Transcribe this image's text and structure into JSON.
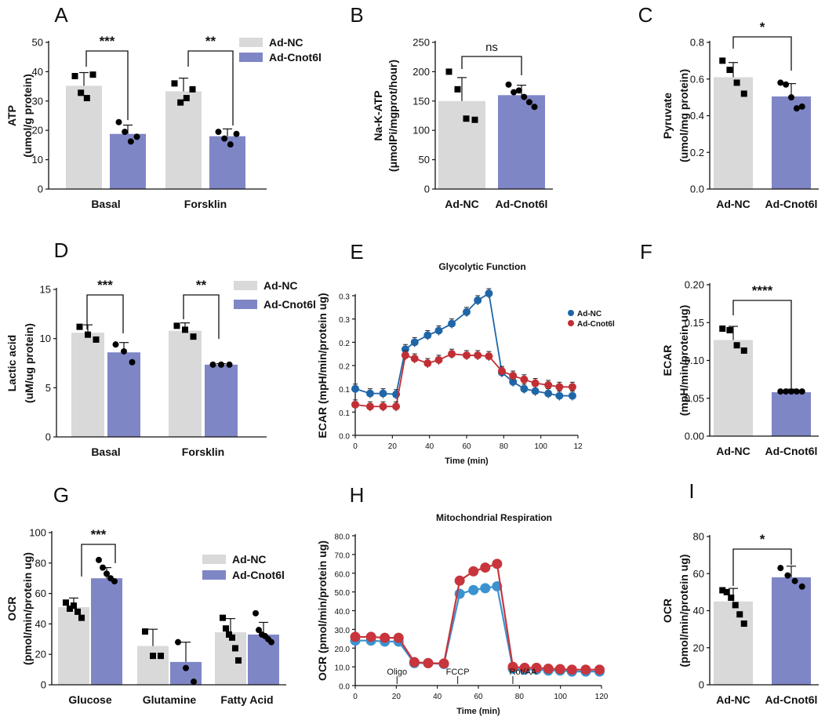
{
  "colors": {
    "nc": "#d9d9d9",
    "cnot": "#7f86c6",
    "ecar_nc": "#1f66a8",
    "ecar_cnot": "#c12f35",
    "ocr_nc": "#3a93d1",
    "ocr_cnot": "#c8353c"
  },
  "chart_data": [
    {
      "id": "A",
      "type": "bar",
      "panel_label": "A",
      "ylabel": "ATP",
      "ylabel2": "(umol/g protein)",
      "ylim": [
        0,
        50
      ],
      "yticks": [
        0,
        10,
        20,
        30,
        40,
        50
      ],
      "categories": [
        "Basal",
        "Forsklin"
      ],
      "series": [
        {
          "name": "Ad-NC",
          "values": [
            35.2,
            33.3
          ],
          "errors": [
            4.5,
            4.5
          ],
          "points": [
            [
              38.5,
              32.8,
              31,
              39
            ],
            [
              36,
              29.5,
              31,
              34
            ]
          ]
        },
        {
          "name": "Ad-Cnot6l",
          "values": [
            18.8,
            18
          ],
          "errors": [
            3,
            2.5
          ],
          "points": [
            [
              22.8,
              19.5,
              16.2,
              17.8
            ],
            [
              19.5,
              17.2,
              15.2,
              18.8
            ]
          ]
        }
      ],
      "legend": [
        "Ad-NC",
        "Ad-Cnot6l"
      ],
      "sig": [
        "***",
        "**"
      ]
    },
    {
      "id": "B",
      "type": "bar",
      "panel_label": "B",
      "ylabel": "Na-K-ATP",
      "ylabel2": "(μmolPi/mgprot/hour)",
      "ylim": [
        0,
        250
      ],
      "yticks": [
        0,
        50,
        100,
        150,
        200,
        250
      ],
      "categories": [
        "Ad-NC",
        "Ad-Cnot6l"
      ],
      "values": [
        150,
        160
      ],
      "errors": [
        40,
        17
      ],
      "points": [
        [
          200,
          170,
          120,
          118
        ],
        [
          178,
          165,
          168,
          157,
          148,
          140
        ]
      ],
      "sig": [
        "ns"
      ]
    },
    {
      "id": "C",
      "type": "bar",
      "panel_label": "C",
      "ylabel": "Pyruvate",
      "ylabel2": "(umol/mg protein)",
      "ylim": [
        0,
        0.8
      ],
      "yticks": [
        "0.0",
        "0.2",
        "0.4",
        "0.6",
        "0.8"
      ],
      "categories": [
        "Ad-NC",
        "Ad-Cnot6l"
      ],
      "values": [
        0.61,
        0.505
      ],
      "errors": [
        0.08,
        0.07
      ],
      "points": [
        [
          0.7,
          0.65,
          0.58,
          0.52
        ],
        [
          0.58,
          0.57,
          0.5,
          0.44,
          0.45
        ]
      ],
      "sig": [
        "*"
      ]
    },
    {
      "id": "D",
      "type": "bar",
      "panel_label": "D",
      "ylabel": "Lactic acid",
      "ylabel2": "(uM/ug protein)",
      "ylim": [
        0,
        15
      ],
      "yticks": [
        0,
        5,
        10,
        15
      ],
      "categories": [
        "Basal",
        "Forsklin"
      ],
      "series": [
        {
          "name": "Ad-NC",
          "values": [
            10.6,
            10.8
          ],
          "errors": [
            0.8,
            0.8
          ],
          "points": [
            [
              11.2,
              10.4,
              9.9
            ],
            [
              11.3,
              10.9,
              10.2
            ]
          ]
        },
        {
          "name": "Ad-Cnot6l",
          "values": [
            8.6,
            7.35
          ],
          "errors": [
            1,
            0.1
          ],
          "points": [
            [
              9.4,
              8.7,
              7.6
            ],
            [
              7.35,
              7.35,
              7.35
            ]
          ]
        }
      ],
      "legend": [
        "Ad-NC",
        "Ad-Cnot6l"
      ],
      "sig": [
        "***",
        "**"
      ]
    },
    {
      "id": "E",
      "type": "line",
      "panel_label": "E",
      "title": "Glycolytic Function",
      "ylabel": "ECAR (mpH/min/protein ug)",
      "xlabel": "Time (min)",
      "xlim": [
        0,
        120
      ],
      "ylim": [
        0,
        0.3
      ],
      "xticks": [
        "0",
        "20",
        "40",
        "60",
        "80",
        "100",
        "12"
      ],
      "yticks": [
        "0.0",
        "0.1",
        "0.1",
        "0.2",
        "0.2",
        "0.3",
        "0.3"
      ],
      "x": [
        0,
        8,
        15,
        22,
        27,
        32,
        39,
        45,
        52,
        60,
        66,
        72,
        79,
        85,
        91,
        97,
        104,
        110,
        117
      ],
      "series": [
        {
          "name": "Ad-NC",
          "values": [
            0.1,
            0.09,
            0.09,
            0.088,
            0.185,
            0.2,
            0.215,
            0.225,
            0.24,
            0.265,
            0.29,
            0.305,
            0.135,
            0.115,
            0.1,
            0.095,
            0.09,
            0.085,
            0.085
          ]
        },
        {
          "name": "Ad-Cnot6l",
          "values": [
            0.066,
            0.062,
            0.062,
            0.062,
            0.172,
            0.165,
            0.155,
            0.162,
            0.175,
            0.172,
            0.172,
            0.17,
            0.138,
            0.128,
            0.12,
            0.112,
            0.108,
            0.104,
            0.104
          ]
        }
      ],
      "legend": [
        "Ad-NC",
        "Ad-Cnot6l"
      ]
    },
    {
      "id": "F",
      "type": "bar",
      "panel_label": "F",
      "ylabel": "ECAR",
      "ylabel2": "(mpH/min/protein ug)",
      "ylim": [
        0,
        0.2
      ],
      "yticks": [
        "0.00",
        "0.05",
        "0.10",
        "0.15",
        "0.20"
      ],
      "categories": [
        "Ad-NC",
        "Ad-Cnot6l"
      ],
      "values": [
        0.127,
        0.058
      ],
      "errors": [
        0.018,
        0.004
      ],
      "points": [
        [
          0.142,
          0.14,
          0.12,
          0.113
        ],
        [
          0.059,
          0.059,
          0.059,
          0.059,
          0.059
        ]
      ],
      "sig": [
        "****"
      ]
    },
    {
      "id": "G",
      "type": "bar",
      "panel_label": "G",
      "ylabel": "OCR",
      "ylabel2": "(pmol/min/protein ug)",
      "ylim": [
        0,
        100
      ],
      "yticks": [
        0,
        20,
        40,
        60,
        80,
        100
      ],
      "categories": [
        "Glucose",
        "Glutamine",
        "Fatty Acid"
      ],
      "series": [
        {
          "name": "Ad-NC",
          "values": [
            51,
            25.5,
            34.5
          ],
          "errors": [
            6,
            11,
            9
          ],
          "points": [
            [
              54,
              50,
              52,
              48,
              44
            ],
            [
              35,
              19,
              19
            ],
            [
              44,
              37,
              33,
              31,
              24,
              16
            ]
          ]
        },
        {
          "name": "Ad-Cnot6l",
          "values": [
            70,
            15,
            33
          ],
          "errors": [
            7,
            13,
            8
          ],
          "points": [
            [
              82,
              77,
              73,
              70,
              68
            ],
            [
              28,
              11,
              2
            ],
            [
              47,
              36,
              33,
              32,
              30,
              28
            ]
          ]
        }
      ],
      "legend": [
        "Ad-NC",
        "Ad-Cnot6l"
      ],
      "sig": [
        "***"
      ]
    },
    {
      "id": "H",
      "type": "line",
      "panel_label": "H",
      "title": "Mitochondrial Respiration",
      "ylabel": "OCR (pmol/min/protein ug)",
      "xlabel": "Time (min)",
      "xlim": [
        0,
        125
      ],
      "ylim": [
        0,
        80
      ],
      "xticks": [
        "0",
        "20",
        "40",
        "60",
        "80",
        "100",
        "120"
      ],
      "yticks": [
        "0.0",
        "10.0",
        "20.0",
        "30.0",
        "40.0",
        "50.0",
        "60.0",
        "70.0",
        "80.0"
      ],
      "x": [
        0,
        8,
        15,
        22,
        30,
        37,
        45,
        53,
        60,
        66,
        72,
        80,
        86,
        92,
        98,
        104,
        110,
        117,
        124
      ],
      "series": [
        {
          "name": "Ad-NC",
          "values": [
            24,
            24,
            23.5,
            23.5,
            12,
            12,
            11.5,
            49,
            51,
            52,
            53,
            9,
            8.5,
            8.5,
            8,
            8,
            7.5,
            7.5,
            7.5
          ]
        },
        {
          "name": "Ad-Cnot6l",
          "values": [
            26,
            26,
            25.5,
            25.5,
            12.5,
            12,
            11.8,
            56,
            61,
            63,
            65,
            10,
            9.5,
            9.5,
            9,
            8.8,
            8.5,
            8.5,
            8.5
          ]
        }
      ],
      "annotations": [
        "Oligo",
        "FCCP",
        "Rot/AA"
      ]
    },
    {
      "id": "I",
      "type": "bar",
      "panel_label": "I",
      "ylabel": "OCR",
      "ylabel2": "(pmol/min/protein ug)",
      "ylim": [
        0,
        80
      ],
      "yticks": [
        0,
        20,
        40,
        60,
        80
      ],
      "categories": [
        "Ad-NC",
        "Ad-Cnot6l"
      ],
      "values": [
        45,
        58
      ],
      "errors": [
        7,
        6
      ],
      "points": [
        [
          51,
          50,
          47,
          43,
          38,
          33
        ],
        [
          63,
          59,
          56,
          53
        ]
      ],
      "sig": [
        "*"
      ]
    }
  ]
}
